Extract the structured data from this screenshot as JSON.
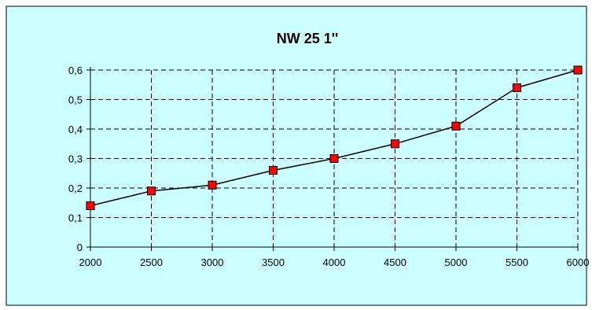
{
  "chart_data": {
    "type": "line",
    "title": "NW 25 1''",
    "xlabel": "",
    "ylabel": "",
    "x": [
      2000,
      2500,
      3000,
      3500,
      4000,
      4500,
      5000,
      5500,
      6000
    ],
    "series": [
      {
        "values": [
          0.14,
          0.19,
          0.21,
          0.26,
          0.3,
          0.35,
          0.41,
          0.54,
          0.6
        ]
      }
    ],
    "xlim": [
      2000,
      6000
    ],
    "ylim": [
      0,
      0.6
    ],
    "xticks": [
      "2000",
      "2500",
      "3000",
      "3500",
      "4000",
      "4500",
      "5000",
      "5500",
      "6000"
    ],
    "yticks": [
      "0",
      "0,1",
      "0,2",
      "0,3",
      "0,4",
      "0,5",
      "0,6"
    ],
    "grid": true,
    "legend": "none",
    "colors": {
      "background": "#ccffff",
      "line": "#000000",
      "marker": "#ff0000",
      "grid": "#000000"
    }
  }
}
